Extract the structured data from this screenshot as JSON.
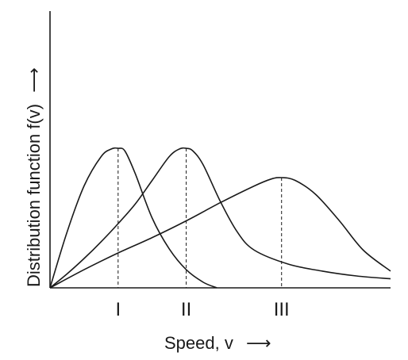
{
  "chart_data": {
    "type": "line",
    "xlabel": "Speed, v",
    "ylabel": "Distribution function f(v)",
    "x_arrow": "⟶",
    "y_arrow": "⟶",
    "xlim": [
      0,
      10
    ],
    "ylim": [
      0,
      10
    ],
    "grid": false,
    "categories_marked": [
      "I",
      "II",
      "III"
    ],
    "series": [
      {
        "label": "I",
        "peak_x": 2.0,
        "peak_y": 10.0,
        "x": [
          0,
          0.5,
          1.0,
          1.5,
          1.8,
          2.0,
          2.2,
          2.5,
          3.0,
          3.5,
          4.0,
          4.5,
          4.9
        ],
        "y": [
          0,
          4.0,
          7.3,
          9.4,
          9.95,
          10.0,
          9.8,
          8.2,
          5.0,
          2.8,
          1.3,
          0.4,
          0
        ]
      },
      {
        "label": "II",
        "peak_x": 4.0,
        "peak_y": 10.0,
        "x": [
          0,
          0.5,
          1.0,
          1.5,
          2.0,
          2.5,
          3.0,
          3.5,
          3.8,
          4.0,
          4.2,
          4.5,
          5.0,
          5.5,
          6.0,
          7.0,
          8.0,
          9.0,
          10.0
        ],
        "y": [
          0,
          1.0,
          2.1,
          3.3,
          4.6,
          6.0,
          7.7,
          9.4,
          9.95,
          10.0,
          9.8,
          8.8,
          6.2,
          4.0,
          2.7,
          1.7,
          1.2,
          0.85,
          0.65
        ]
      },
      {
        "label": "III",
        "peak_x": 6.8,
        "peak_y": 7.9,
        "x": [
          0,
          1.0,
          2.0,
          3.0,
          4.0,
          5.0,
          6.0,
          6.5,
          6.8,
          7.2,
          7.8,
          8.5,
          9.2,
          10.0
        ],
        "y": [
          0,
          1.3,
          2.5,
          3.6,
          4.8,
          6.1,
          7.3,
          7.8,
          7.9,
          7.7,
          6.7,
          4.8,
          2.7,
          1.2
        ]
      }
    ]
  }
}
